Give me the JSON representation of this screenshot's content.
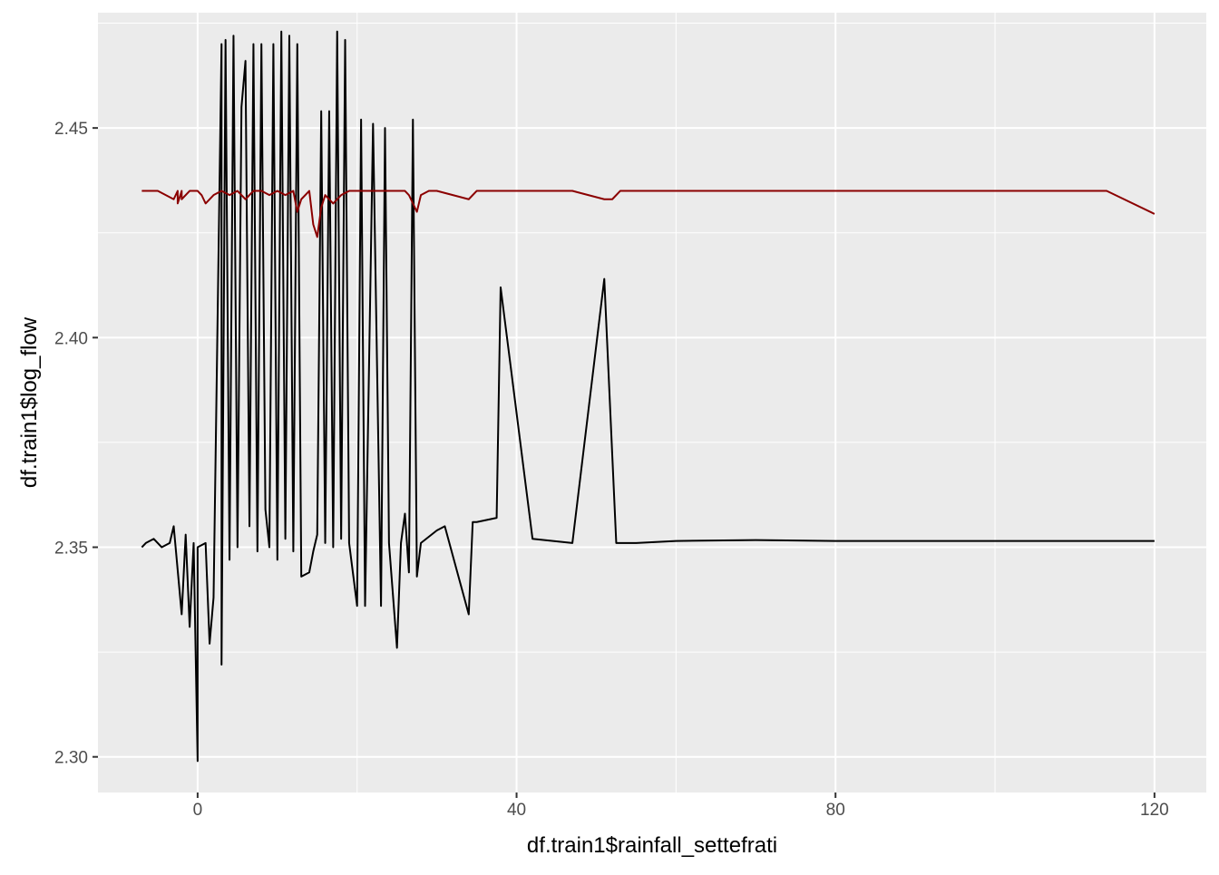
{
  "chart_data": {
    "type": "line",
    "title": "",
    "xlabel": "df.train1$rainfall_settefrati",
    "ylabel": "df.train1$log_flow",
    "xlim": [
      -12.5,
      126.5
    ],
    "ylim": [
      2.2915,
      2.4775
    ],
    "x_ticks": [
      0,
      40,
      80,
      120
    ],
    "y_ticks": [
      2.3,
      2.35,
      2.4,
      2.45
    ],
    "x_tick_labels": [
      "0",
      "40",
      "80",
      "120"
    ],
    "y_tick_labels": [
      "2.30",
      "2.35",
      "2.40",
      "2.45"
    ],
    "grid": true,
    "legend": "none",
    "panel_background": "#EBEBEB",
    "grid_color": "#FFFFFF",
    "series": [
      {
        "color": "#000000",
        "x": [
          -7,
          -6.5,
          -5.5,
          -4.5,
          -3.5,
          -3,
          -2,
          -1.5,
          -1,
          -0.5,
          0,
          0,
          1,
          1.5,
          2,
          3,
          3,
          3.5,
          4,
          4.5,
          5,
          5.5,
          6,
          6.5,
          7,
          7.5,
          8,
          8.5,
          9,
          9.5,
          10,
          10.5,
          11,
          11.5,
          12,
          12.5,
          13,
          14,
          14.5,
          15,
          15.5,
          16,
          16.5,
          17,
          17.5,
          18,
          18.5,
          19,
          20,
          20.5,
          21,
          22,
          23,
          23.5,
          24,
          25,
          25.5,
          26,
          26.5,
          27,
          27.5,
          28,
          30,
          31,
          34,
          34.5,
          35,
          37.5,
          38,
          42,
          47,
          51,
          52.5,
          55,
          60,
          70,
          80,
          100,
          120
        ],
        "values": [
          2.35,
          2.351,
          2.352,
          2.35,
          2.351,
          2.355,
          2.334,
          2.353,
          2.331,
          2.351,
          2.299,
          2.35,
          2.351,
          2.327,
          2.338,
          2.47,
          2.322,
          2.471,
          2.347,
          2.472,
          2.35,
          2.455,
          2.466,
          2.355,
          2.47,
          2.349,
          2.47,
          2.359,
          2.35,
          2.47,
          2.347,
          2.473,
          2.352,
          2.472,
          2.349,
          2.47,
          2.343,
          2.344,
          2.349,
          2.353,
          2.454,
          2.351,
          2.454,
          2.35,
          2.473,
          2.352,
          2.471,
          2.351,
          2.336,
          2.452,
          2.336,
          2.451,
          2.336,
          2.45,
          2.351,
          2.326,
          2.351,
          2.358,
          2.344,
          2.452,
          2.343,
          2.351,
          2.354,
          2.355,
          2.334,
          2.356,
          2.356,
          2.357,
          2.412,
          2.352,
          2.351,
          2.414,
          2.351,
          2.351,
          2.3515,
          2.3517,
          2.3515,
          2.3515,
          2.3515
        ]
      },
      {
        "color": "#8B0000",
        "x": [
          -7,
          -5,
          -4,
          -3,
          -2.5,
          -2.5,
          -2,
          -2,
          -1,
          0,
          0.5,
          1,
          2,
          3,
          4,
          5,
          6,
          7,
          8,
          9,
          10,
          11,
          12,
          12.5,
          13,
          14,
          14.5,
          15,
          15.5,
          16,
          17,
          18,
          19,
          20,
          22,
          23,
          25,
          26,
          26.5,
          27,
          27.5,
          28,
          29,
          30,
          32,
          34,
          35,
          36,
          40,
          47,
          51,
          52,
          53,
          60,
          80,
          100,
          114,
          120
        ],
        "values": [
          2.435,
          2.435,
          2.434,
          2.433,
          2.435,
          2.432,
          2.435,
          2.433,
          2.435,
          2.435,
          2.434,
          2.432,
          2.434,
          2.435,
          2.434,
          2.435,
          2.433,
          2.435,
          2.435,
          2.434,
          2.435,
          2.434,
          2.435,
          2.43,
          2.433,
          2.435,
          2.427,
          2.424,
          2.431,
          2.434,
          2.432,
          2.434,
          2.435,
          2.435,
          2.435,
          2.435,
          2.435,
          2.435,
          2.434,
          2.432,
          2.43,
          2.434,
          2.435,
          2.435,
          2.434,
          2.433,
          2.435,
          2.435,
          2.435,
          2.435,
          2.433,
          2.433,
          2.435,
          2.435,
          2.435,
          2.435,
          2.435,
          2.4295
        ]
      }
    ]
  }
}
